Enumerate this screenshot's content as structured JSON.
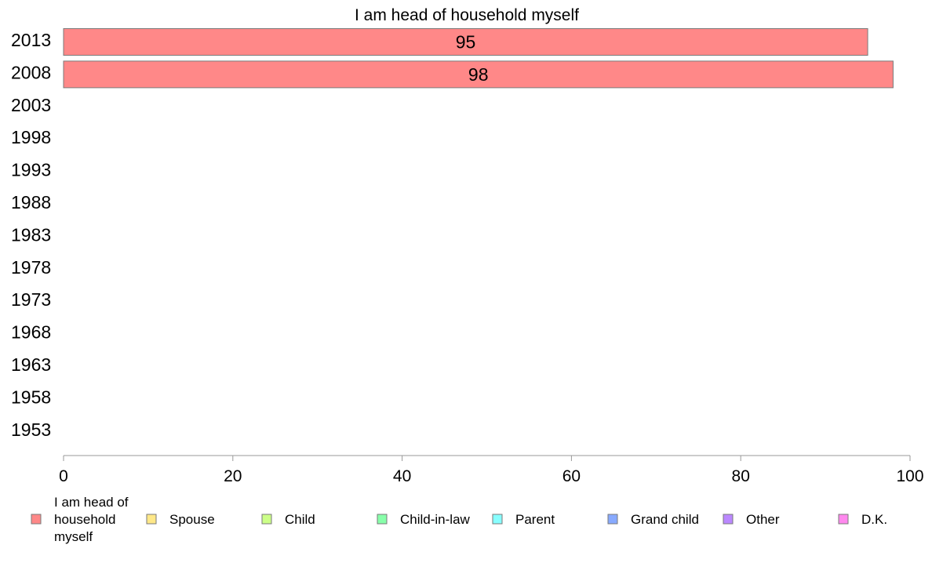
{
  "chart_data": {
    "type": "bar",
    "orientation": "horizontal",
    "stacked": true,
    "title": "I am head of household myself",
    "xlabel": "",
    "ylabel": "",
    "categories": [
      "2013",
      "2008",
      "2003",
      "1998",
      "1993",
      "1988",
      "1983",
      "1978",
      "1973",
      "1968",
      "1963",
      "1958",
      "1953"
    ],
    "xlim": [
      0,
      100
    ],
    "xticks": [
      0,
      20,
      40,
      60,
      80,
      100
    ],
    "grid": false,
    "legend_position": "bottom",
    "series": [
      {
        "name": "I am head of household myself",
        "color": "#ff8888",
        "values": [
          95,
          98,
          null,
          null,
          null,
          null,
          null,
          null,
          null,
          null,
          null,
          null,
          null
        ]
      },
      {
        "name": "Spouse",
        "color": "#ffe888",
        "values": [
          null,
          null,
          null,
          null,
          null,
          null,
          null,
          null,
          null,
          null,
          null,
          null,
          null
        ]
      },
      {
        "name": "Child",
        "color": "#ccff88",
        "values": [
          null,
          null,
          null,
          null,
          null,
          null,
          null,
          null,
          null,
          null,
          null,
          null,
          null
        ]
      },
      {
        "name": "Child-in-law",
        "color": "#88ffaa",
        "values": [
          null,
          null,
          null,
          null,
          null,
          null,
          null,
          null,
          null,
          null,
          null,
          null,
          null
        ]
      },
      {
        "name": "Parent",
        "color": "#88ffff",
        "values": [
          null,
          null,
          null,
          null,
          null,
          null,
          null,
          null,
          null,
          null,
          null,
          null,
          null
        ]
      },
      {
        "name": "Grand child",
        "color": "#88aaff",
        "values": [
          null,
          null,
          null,
          null,
          null,
          null,
          null,
          null,
          null,
          null,
          null,
          null,
          null
        ]
      },
      {
        "name": "Other",
        "color": "#bb88ff",
        "values": [
          null,
          null,
          null,
          null,
          null,
          null,
          null,
          null,
          null,
          null,
          null,
          null,
          null
        ]
      },
      {
        "name": "D.K.",
        "color": "#ff88ee",
        "values": [
          null,
          null,
          null,
          null,
          null,
          null,
          null,
          null,
          null,
          null,
          null,
          null,
          null
        ]
      }
    ],
    "data_labels": [
      {
        "category": "2013",
        "text": "95"
      },
      {
        "category": "2008",
        "text": "98"
      }
    ]
  }
}
